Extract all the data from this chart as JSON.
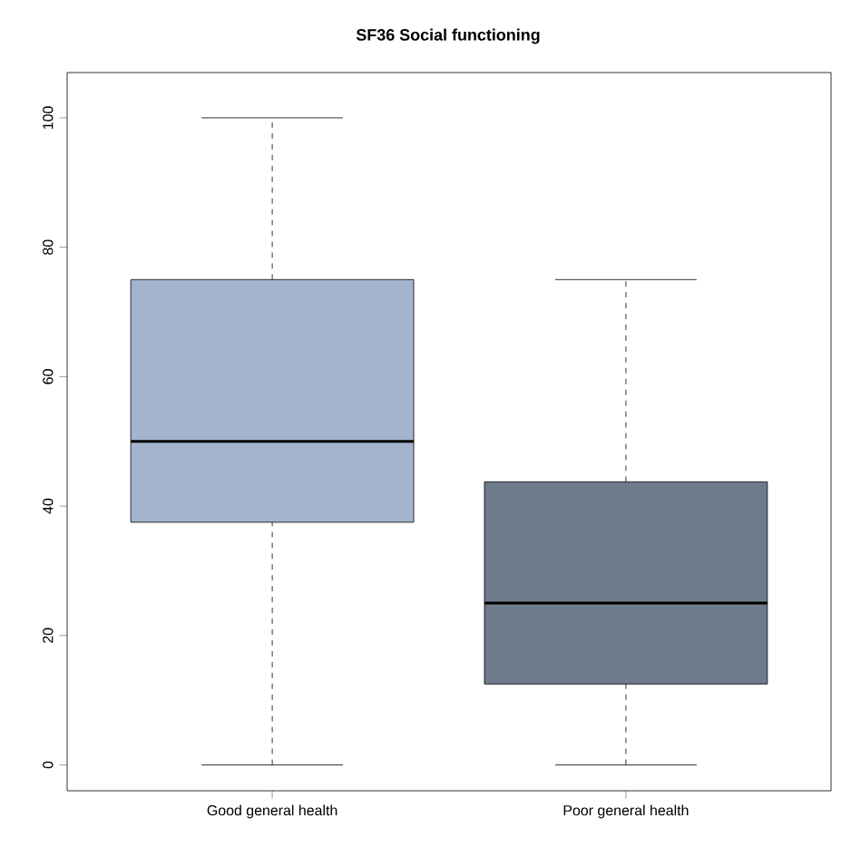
{
  "chart_data": {
    "type": "box",
    "title": "SF36 Social functioning",
    "categories": [
      "Good general health",
      "Poor general health"
    ],
    "boxes": [
      {
        "low": 0,
        "q1": 37.5,
        "median": 50,
        "q3": 75,
        "high": 100
      },
      {
        "low": 0,
        "q1": 12.5,
        "median": 25,
        "q3": 43.75,
        "high": 75
      }
    ],
    "colors": [
      "#a3b4cc",
      "#6e7b8b"
    ],
    "ylim": [
      -4,
      107
    ],
    "yticks": [
      0,
      20,
      40,
      60,
      80,
      100
    ],
    "grid": false
  }
}
